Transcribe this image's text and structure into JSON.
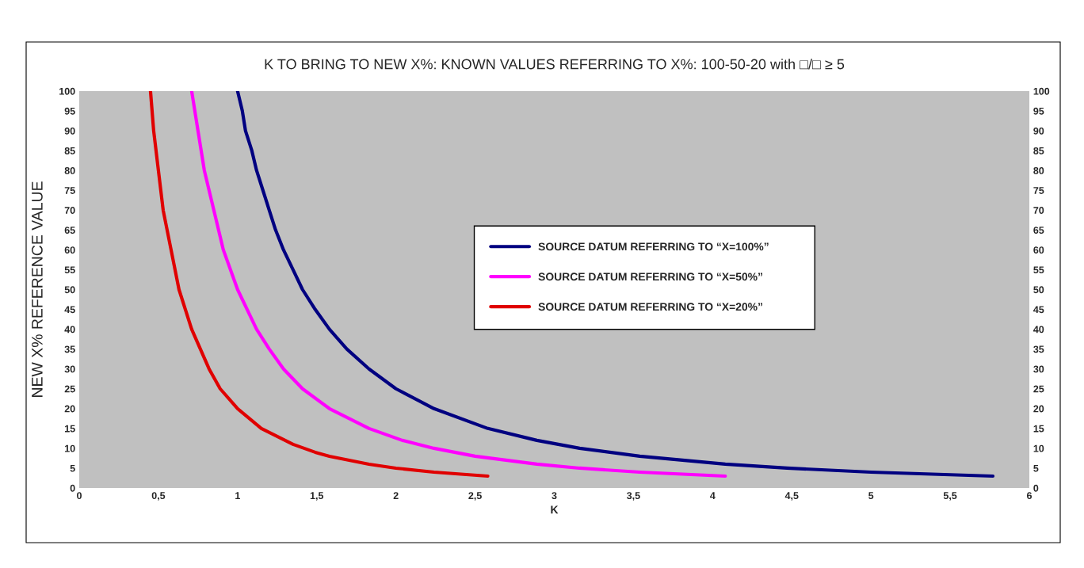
{
  "chart_data": {
    "type": "line",
    "title": "K TO BRING TO NEW X%: KNOWN VALUES REFERRING TO X%: 100-50-20 with □/□ ≥ 5",
    "xlabel": "K",
    "ylabel": "NEW X% REFERENCE VALUE",
    "series": [
      {
        "name": "SOURCE DATUM REFERRING TO “X=100%”",
        "color": "#000080",
        "x": [
          1.0,
          1.03,
          1.05,
          1.09,
          1.12,
          1.16,
          1.2,
          1.24,
          1.29,
          1.35,
          1.41,
          1.49,
          1.58,
          1.69,
          1.83,
          2.0,
          2.24,
          2.58,
          2.89,
          3.16,
          3.54,
          4.08,
          4.47,
          5.0,
          5.77
        ],
        "values": [
          100,
          95,
          90,
          85,
          80,
          75,
          70,
          65,
          60,
          55,
          50,
          45,
          40,
          35,
          30,
          25,
          20,
          15,
          12,
          10,
          8,
          6,
          5,
          4,
          3
        ]
      },
      {
        "name": "SOURCE DATUM REFERRING TO “X=50%”",
        "color": "#ff00ff",
        "x": [
          0.71,
          0.75,
          0.79,
          0.85,
          0.91,
          1.0,
          1.12,
          1.2,
          1.29,
          1.41,
          1.58,
          1.83,
          2.04,
          2.24,
          2.5,
          2.89,
          3.16,
          3.54,
          4.08
        ],
        "values": [
          100,
          90,
          80,
          70,
          60,
          50,
          40,
          35,
          30,
          25,
          20,
          15,
          12,
          10,
          8,
          6,
          5,
          4,
          3
        ]
      },
      {
        "name": "SOURCE DATUM REFERRING TO “X=20%”",
        "color": "#e00000",
        "x": [
          0.45,
          0.47,
          0.5,
          0.53,
          0.58,
          0.63,
          0.71,
          0.82,
          0.89,
          1.0,
          1.15,
          1.35,
          1.49,
          1.58,
          1.83,
          2.0,
          2.24,
          2.58
        ],
        "values": [
          100,
          90,
          80,
          70,
          60,
          50,
          40,
          30,
          25,
          20,
          15,
          11,
          9,
          8,
          6,
          5,
          4,
          3
        ]
      }
    ],
    "xlim": [
      0,
      6
    ],
    "xticks": [
      0,
      {
        "value": 0.5,
        "label": "0,5"
      },
      1,
      {
        "value": 1.5,
        "label": "1,5"
      },
      2,
      {
        "value": 2.5,
        "label": "2,5"
      },
      3,
      {
        "value": 3.5,
        "label": "3,5"
      },
      4,
      {
        "value": 4.5,
        "label": "4,5"
      },
      5,
      {
        "value": 5.5,
        "label": "5,5"
      },
      6
    ],
    "ylim": [
      0,
      100
    ],
    "yticks": [
      0,
      5,
      10,
      15,
      20,
      25,
      30,
      35,
      40,
      45,
      50,
      55,
      60,
      65,
      70,
      75,
      80,
      85,
      90,
      95,
      100
    ],
    "y2lim": [
      0,
      100
    ],
    "y2ticks": [
      0,
      5,
      10,
      15,
      20,
      25,
      30,
      35,
      40,
      45,
      50,
      55,
      60,
      65,
      70,
      75,
      80,
      85,
      90,
      95,
      100
    ],
    "legend": "center",
    "marker": "none",
    "line_style": "solid"
  }
}
